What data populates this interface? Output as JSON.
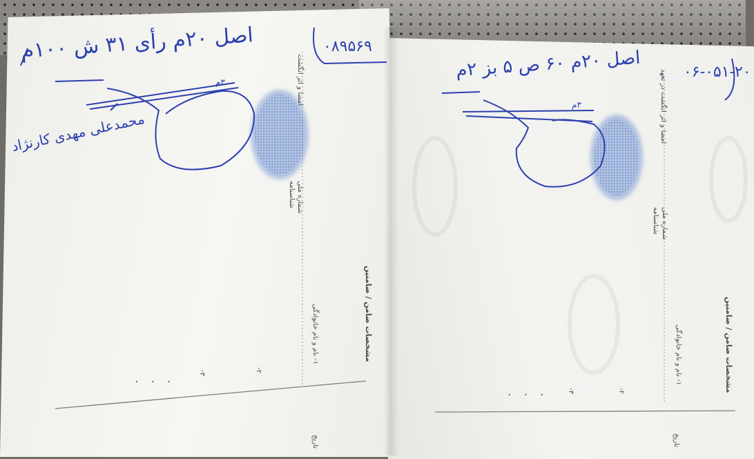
{
  "left_page": {
    "serial_number": "۰۸۹۵۶۹",
    "handwritten_note": "اصل ۲۰م رأی ۳۱ ش ۱۰۰م",
    "guarantor_name": "محمدعلی مهدی کارنژاد",
    "ink_amount": "۳م",
    "form_labels": {
      "section_title": "مشخصات ضامن / ضامنین",
      "row_1": "۱- نام و نام خانوادگی",
      "row_2": "۲-",
      "row_3": "۳-",
      "national_code": "شماره ملی",
      "id_number": "شناسنامه",
      "signature_fingerprint": "امضا و اثر انگشت",
      "date": "تاریخ"
    }
  },
  "right_page": {
    "serial_number": "۰۶-۰۵۱-۲۰",
    "handwritten_note": "اصل ۲۰م ۶۰ ص ۵ بز ۲م",
    "ink_amount": "۳م",
    "form_labels": {
      "section_title": "مشخصات ضامن / ضامنین",
      "row_1": "۱- نام و نام خانوادگی",
      "row_2": "۲-",
      "row_3": "۳-",
      "national_code": "شماره ملی",
      "id_number": "شناسنامه",
      "signature_fingerprint": "امضا و اثر انگشت در تعهد",
      "date": "تاریخ"
    }
  },
  "colors": {
    "ink": "#2c3fae",
    "fingerprint": "#7d9cd6",
    "paper": "#f4f4f1",
    "print": "#4a4a4a"
  }
}
